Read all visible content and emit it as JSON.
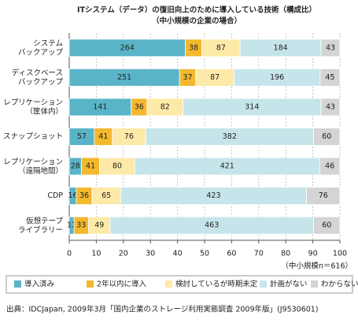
{
  "chart_data": {
    "type": "stacked-bar-horizontal-percent",
    "title": "ITシステム（データ）の復旧向上のために導入している技術（構成比）",
    "subtitle": "（中小規模の企業の場合）",
    "categories": [
      "システム\nバックアップ",
      "ディスクベース\nバックアップ",
      "レプリケーション\n（筐体内）",
      "スナップショット",
      "レプリケーション\n（遠隔地間）",
      "CDP",
      "仮想テープ\nライブラリー"
    ],
    "series": [
      {
        "name": "導入済み",
        "color": "#5ab4c8",
        "values": [
          264,
          251,
          141,
          57,
          28,
          16,
          11
        ]
      },
      {
        "name": "2年以内に導入",
        "color": "#f3b82e",
        "values": [
          38,
          37,
          36,
          41,
          41,
          36,
          33
        ]
      },
      {
        "name": "検討しているが時期未定",
        "color": "#fdeaa8",
        "values": [
          87,
          87,
          82,
          76,
          80,
          65,
          49
        ]
      },
      {
        "name": "計画がない",
        "color": "#c6e5eb",
        "values": [
          184,
          196,
          314,
          382,
          421,
          423,
          463
        ]
      },
      {
        "name": "わからない",
        "color": "#d4d4d4",
        "values": [
          43,
          45,
          43,
          60,
          46,
          76,
          60
        ]
      }
    ],
    "xlim": [
      0,
      100
    ],
    "xticks": [
      0,
      10,
      20,
      30,
      40,
      50,
      60,
      70,
      80,
      90,
      100
    ],
    "grid": true,
    "note": "（中小規模n＝616）",
    "source": "出典：IDCJapan, 2009年3月「国内企業のストレージ利用実態調査 2009年版」(J9530601)"
  }
}
